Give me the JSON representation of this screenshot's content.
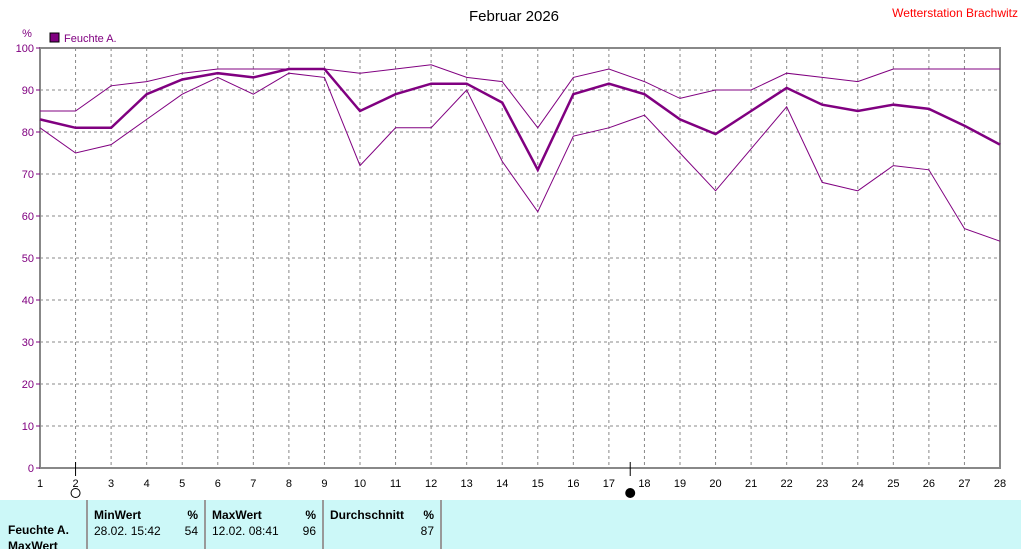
{
  "header": {
    "title": "Februar 2026",
    "station": "Wetterstation Brachwitz",
    "unit": "%"
  },
  "legend": {
    "label": "Feuchte A.",
    "color": "#800080"
  },
  "moon": [
    {
      "day": 2,
      "phase": "full-moon"
    },
    {
      "day": 17.6,
      "phase": "new-moon"
    }
  ],
  "chart_data": {
    "type": "line",
    "title": "Februar 2026",
    "ylabel": "%",
    "xlim": [
      1,
      28
    ],
    "ylim": [
      0,
      100
    ],
    "grid": true,
    "x": [
      1,
      2,
      3,
      4,
      5,
      6,
      7,
      8,
      9,
      10,
      11,
      12,
      13,
      14,
      15,
      16,
      17,
      18,
      19,
      20,
      21,
      22,
      23,
      24,
      25,
      26,
      27,
      28
    ],
    "yticks": [
      0,
      10,
      20,
      30,
      40,
      50,
      60,
      70,
      80,
      90,
      100
    ],
    "series": [
      {
        "role": "max",
        "values": [
          85,
          85,
          91,
          92,
          94,
          95,
          95,
          95,
          95,
          94,
          95,
          96,
          93,
          92,
          81,
          93,
          95,
          92,
          88,
          90,
          90,
          94,
          93,
          92,
          95,
          95,
          95,
          95
        ]
      },
      {
        "name": "Feuchte A.",
        "role": "avg",
        "values": [
          83,
          81,
          81,
          89,
          92.5,
          94,
          93,
          95,
          95,
          85,
          89,
          91.5,
          91.5,
          87,
          71,
          89,
          91.5,
          89,
          83,
          79.5,
          85,
          90.5,
          86.5,
          85,
          86.5,
          85.5,
          81.5,
          77
        ]
      },
      {
        "role": "min",
        "values": [
          81,
          75,
          77,
          83,
          89,
          93,
          89,
          94,
          93,
          72,
          81,
          81,
          90,
          73,
          61,
          79,
          81,
          84,
          75,
          66,
          76,
          86,
          68,
          66,
          72,
          71,
          57,
          54
        ]
      }
    ]
  },
  "table": {
    "row_label": "Feuchte A.",
    "row_label2": "MaxWert",
    "min": {
      "header": "MinWert",
      "unit": "%",
      "time": "28.02.  15:42",
      "value": "54"
    },
    "max": {
      "header": "MaxWert",
      "unit": "%",
      "time": "12.02.  08:41",
      "value": "96"
    },
    "avg": {
      "header": "Durchschnitt",
      "unit": "%",
      "value": "87"
    }
  }
}
